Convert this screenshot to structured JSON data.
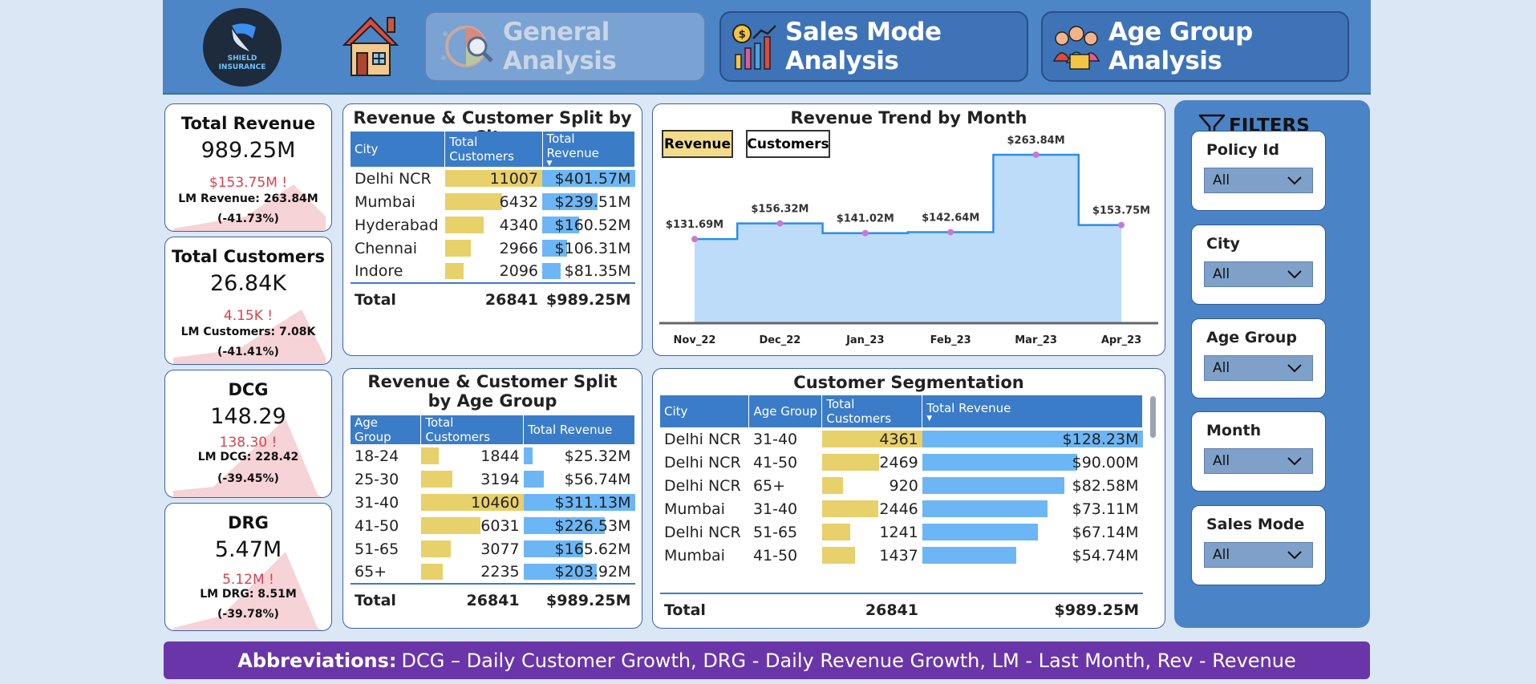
{
  "logo": {
    "line1": "SHIELD",
    "line2": "INSURANCE"
  },
  "nav": [
    {
      "label": "General Analysis",
      "active": true
    },
    {
      "label": "Sales Mode Analysis",
      "active": false
    },
    {
      "label": "Age Group Analysis",
      "active": false
    }
  ],
  "kpis": [
    {
      "title": "Total Revenue",
      "value": "989.25M",
      "lm_value": "$153.75M",
      "lm_flag": "!",
      "lm_text": "LM Revenue: 263.84M",
      "pct": "(-41.73%)"
    },
    {
      "title": "Total Customers",
      "value": "26.84K",
      "lm_value": "4.15K",
      "lm_flag": "!",
      "lm_text": "LM Customers: 7.08K",
      "pct": "(-41.41%)"
    },
    {
      "title": "DCG",
      "value": "148.29",
      "lm_value": "138.30",
      "lm_flag": "!",
      "lm_text": "LM DCG: 228.42",
      "pct": "(-39.45%)"
    },
    {
      "title": "DRG",
      "value": "5.47M",
      "lm_value": "5.12M",
      "lm_flag": "!",
      "lm_text": "LM DRG: 8.51M",
      "pct": "(-39.78%)"
    }
  ],
  "city_split": {
    "title": "Revenue & Customer Split by City",
    "headers": [
      "City",
      "Total Customers",
      "Total Revenue"
    ],
    "rows": [
      {
        "city": "Delhi NCR",
        "customers": "11007",
        "revenue": "$401.57M",
        "cust_n": 11007,
        "rev_n": 401.57
      },
      {
        "city": "Mumbai",
        "customers": "6432",
        "revenue": "$239.51M",
        "cust_n": 6432,
        "rev_n": 239.51
      },
      {
        "city": "Hyderabad",
        "customers": "4340",
        "revenue": "$160.52M",
        "cust_n": 4340,
        "rev_n": 160.52
      },
      {
        "city": "Chennai",
        "customers": "2966",
        "revenue": "$106.31M",
        "cust_n": 2966,
        "rev_n": 106.31
      },
      {
        "city": "Indore",
        "customers": "2096",
        "revenue": "$81.35M",
        "cust_n": 2096,
        "rev_n": 81.35
      }
    ],
    "total_label": "Total",
    "total_customers": "26841",
    "total_revenue": "$989.25M"
  },
  "trend": {
    "title": "Revenue Trend by Month",
    "toggle_revenue": "Revenue",
    "toggle_customers": "Customers"
  },
  "chart_data": {
    "type": "area",
    "title": "Revenue Trend by Month",
    "x": [
      "Nov_22",
      "Dec_22",
      "Jan_23",
      "Feb_23",
      "Mar_23",
      "Apr_23"
    ],
    "values": [
      131.69,
      156.32,
      141.02,
      142.64,
      263.84,
      153.75
    ],
    "labels": [
      "$131.69M",
      "$156.32M",
      "$141.02M",
      "$142.64M",
      "$263.84M",
      "$153.75M"
    ],
    "step": true,
    "ylim": [
      0,
      290
    ],
    "grid": false
  },
  "age_split": {
    "title": "Revenue & Customer Split by Age Group",
    "headers": [
      "Age Group",
      "Total Customers",
      "Total Revenue"
    ],
    "rows": [
      {
        "age": "18-24",
        "customers": "1844",
        "revenue": "$25.32M",
        "cust_n": 1844,
        "rev_n": 25.32
      },
      {
        "age": "25-30",
        "customers": "3194",
        "revenue": "$56.74M",
        "cust_n": 3194,
        "rev_n": 56.74
      },
      {
        "age": "31-40",
        "customers": "10460",
        "revenue": "$311.13M",
        "cust_n": 10460,
        "rev_n": 311.13
      },
      {
        "age": "41-50",
        "customers": "6031",
        "revenue": "$226.53M",
        "cust_n": 6031,
        "rev_n": 226.53
      },
      {
        "age": "51-65",
        "customers": "3077",
        "revenue": "$165.62M",
        "cust_n": 3077,
        "rev_n": 165.62
      },
      {
        "age": "65+",
        "customers": "2235",
        "revenue": "$203.92M",
        "cust_n": 2235,
        "rev_n": 203.92
      }
    ],
    "total_label": "Total",
    "total_customers": "26841",
    "total_revenue": "$989.25M"
  },
  "segmentation": {
    "title": "Customer Segmentation",
    "headers": [
      "City",
      "Age Group",
      "Total Customers",
      "Total Revenue"
    ],
    "rows": [
      {
        "city": "Delhi NCR",
        "age": "31-40",
        "customers": "4361",
        "revenue": "$128.23M",
        "cust_n": 4361,
        "rev_n": 128.23
      },
      {
        "city": "Delhi NCR",
        "age": "41-50",
        "customers": "2469",
        "revenue": "$90.00M",
        "cust_n": 2469,
        "rev_n": 90.0
      },
      {
        "city": "Delhi NCR",
        "age": "65+",
        "customers": "920",
        "revenue": "$82.58M",
        "cust_n": 920,
        "rev_n": 82.58
      },
      {
        "city": "Mumbai",
        "age": "31-40",
        "customers": "2446",
        "revenue": "$73.11M",
        "cust_n": 2446,
        "rev_n": 73.11
      },
      {
        "city": "Delhi NCR",
        "age": "51-65",
        "customers": "1241",
        "revenue": "$67.14M",
        "cust_n": 1241,
        "rev_n": 67.14
      },
      {
        "city": "Mumbai",
        "age": "41-50",
        "customers": "1437",
        "revenue": "$54.74M",
        "cust_n": 1437,
        "rev_n": 54.74
      }
    ],
    "total_label": "Total",
    "total_customers": "26841",
    "total_revenue": "$989.25M"
  },
  "filters": {
    "title": "FILTERS",
    "items": [
      {
        "label": "Policy Id",
        "value": "All"
      },
      {
        "label": "City",
        "value": "All"
      },
      {
        "label": "Age Group",
        "value": "All"
      },
      {
        "label": "Month",
        "value": "All"
      },
      {
        "label": "Sales Mode",
        "value": "All"
      }
    ]
  },
  "footer": {
    "label": "Abbreviations:",
    "text": "DCG – Daily Customer Growth, DRG - Daily Revenue Growth, LM - Last Month, Rev - Revenue"
  },
  "colors": {
    "header": "#4d86c6",
    "yellow_bar": "#e8d06a",
    "blue_bar": "#6cb6f5",
    "alert": "#d9404f",
    "footer": "#6a35a8"
  }
}
